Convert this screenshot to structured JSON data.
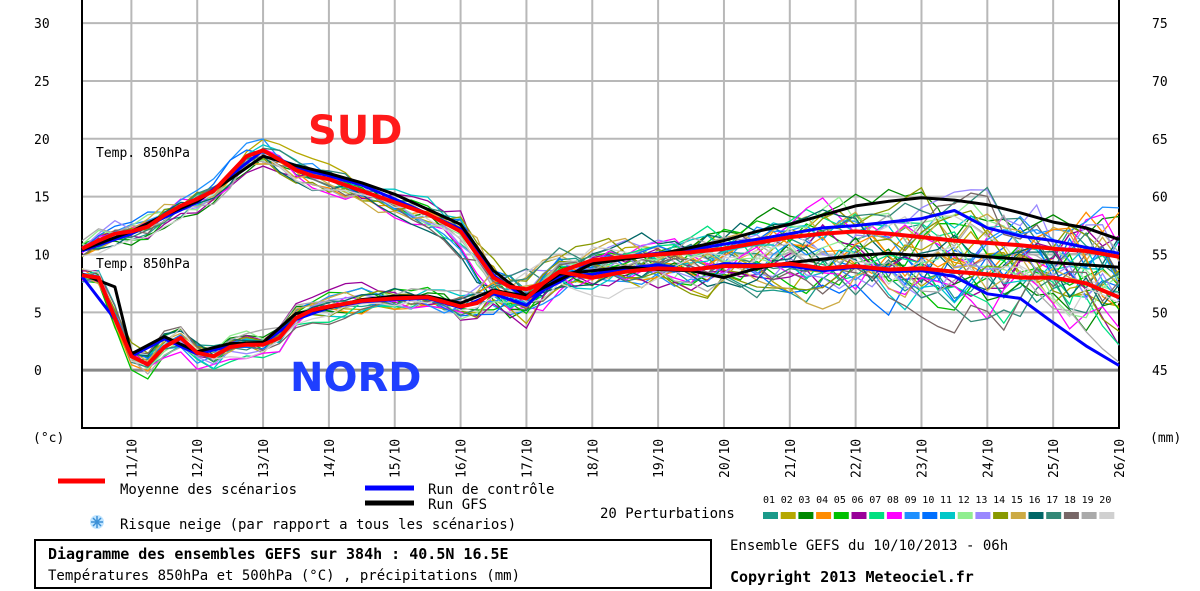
{
  "chart_data": {
    "type": "line",
    "y_left": {
      "label": "(°c)",
      "ticks": [
        0,
        5,
        10,
        15,
        20,
        25,
        30
      ],
      "range": [
        -5,
        32
      ]
    },
    "y_right": {
      "label": "(mm)",
      "ticks": [
        45,
        50,
        55,
        60,
        65,
        70,
        75
      ]
    },
    "x_labels": [
      "11/10",
      "12/10",
      "13/10",
      "14/10",
      "15/10",
      "16/10",
      "17/10",
      "18/10",
      "19/10",
      "20/10",
      "21/10",
      "22/10",
      "23/10",
      "24/10",
      "25/10",
      "26/10"
    ],
    "x_range": [
      10.25,
      26.0
    ],
    "region_labels": {
      "south": "SUD",
      "north": "NORD"
    },
    "series_annotations": [
      "Temp. 850hPa",
      "Temp. 850hPa"
    ],
    "series": [
      {
        "name": "Moyenne des scénarios (SUD)",
        "color": "#ff0000",
        "x": [
          10.25,
          10.5,
          10.75,
          11.0,
          11.25,
          11.5,
          11.75,
          12.0,
          12.25,
          12.5,
          12.75,
          13.0,
          13.25,
          13.5,
          13.75,
          14.0,
          14.5,
          15.0,
          15.5,
          16.0,
          16.25,
          16.5,
          16.75,
          17.0,
          17.25,
          17.5,
          18.0,
          18.5,
          19.0,
          19.5,
          20.0,
          20.5,
          21.0,
          21.5,
          22.0,
          22.5,
          23.0,
          23.5,
          24.0,
          24.5,
          25.0,
          25.5,
          26.0
        ],
        "y": [
          10.5,
          11.2,
          11.8,
          12.0,
          12.4,
          13.4,
          14.2,
          14.8,
          15.5,
          17.0,
          18.5,
          19.0,
          18.2,
          17.3,
          16.8,
          16.5,
          15.5,
          14.5,
          13.5,
          12.0,
          10.0,
          8.0,
          7.2,
          7.0,
          7.5,
          8.5,
          9.5,
          9.8,
          10.0,
          10.2,
          10.5,
          11.0,
          11.5,
          11.8,
          12.0,
          11.8,
          11.5,
          11.2,
          11.0,
          10.8,
          10.5,
          10.3,
          9.8
        ]
      },
      {
        "name": "Moyenne des scénarios (NORD)",
        "color": "#ff0000",
        "x": [
          10.25,
          10.5,
          10.75,
          11.0,
          11.25,
          11.5,
          11.75,
          12.0,
          12.25,
          12.5,
          12.75,
          13.0,
          13.25,
          13.5,
          13.75,
          14.0,
          14.5,
          15.0,
          15.5,
          16.0,
          16.25,
          16.5,
          16.75,
          17.0,
          17.25,
          17.5,
          18.0,
          18.5,
          19.0,
          19.5,
          20.0,
          20.5,
          21.0,
          21.5,
          22.0,
          22.5,
          23.0,
          23.5,
          24.0,
          24.5,
          25.0,
          25.5,
          26.0
        ],
        "y": [
          8.2,
          8.0,
          4.5,
          1.2,
          0.5,
          2.0,
          2.8,
          1.5,
          1.2,
          2.0,
          2.2,
          2.2,
          2.8,
          4.5,
          5.2,
          5.5,
          6.0,
          6.2,
          6.3,
          5.5,
          5.8,
          6.8,
          6.5,
          6.2,
          7.5,
          8.5,
          8.0,
          8.5,
          8.8,
          8.7,
          9.0,
          9.0,
          9.2,
          8.8,
          9.0,
          8.7,
          8.8,
          8.5,
          8.3,
          8.0,
          8.0,
          7.5,
          6.3
        ]
      },
      {
        "name": "Run de contrôle (SUD)",
        "color": "#0000ff",
        "x": [
          10.25,
          11.0,
          11.5,
          12.0,
          12.5,
          13.0,
          13.5,
          14.0,
          14.5,
          15.0,
          15.5,
          16.0,
          16.5,
          17.0,
          17.5,
          18.0,
          18.5,
          19.0,
          19.5,
          20.0,
          20.5,
          21.0,
          21.5,
          22.0,
          22.5,
          23.0,
          23.5,
          24.0,
          24.5,
          25.0,
          25.5,
          26.0
        ],
        "y": [
          10.3,
          11.8,
          13.2,
          14.5,
          16.8,
          19.0,
          17.5,
          16.8,
          16.0,
          14.8,
          13.5,
          12.2,
          8.2,
          6.2,
          7.6,
          9.4,
          9.8,
          10.1,
          10.4,
          10.9,
          11.3,
          11.8,
          12.3,
          12.5,
          12.8,
          13.1,
          13.8,
          12.3,
          11.6,
          11.2,
          10.6,
          10.1
        ]
      },
      {
        "name": "Run de contrôle (NORD)",
        "color": "#0000ff",
        "x": [
          10.25,
          10.75,
          11.0,
          11.5,
          12.0,
          12.5,
          13.0,
          13.5,
          14.0,
          14.5,
          15.0,
          15.5,
          16.0,
          16.5,
          17.0,
          17.5,
          18.0,
          18.5,
          19.0,
          19.5,
          20.0,
          20.5,
          21.0,
          21.5,
          22.0,
          22.5,
          23.0,
          23.5,
          24.0,
          24.5,
          25.0,
          25.5,
          26.0
        ],
        "y": [
          8.1,
          4.4,
          1.2,
          2.7,
          1.4,
          2.1,
          2.3,
          4.4,
          5.4,
          5.9,
          6.1,
          6.2,
          5.4,
          6.6,
          5.6,
          8.1,
          8.3,
          8.8,
          9.1,
          8.6,
          9.2,
          9.1,
          9.0,
          8.6,
          8.9,
          8.5,
          8.6,
          8.1,
          6.6,
          6.2,
          4.1,
          2.1,
          0.4
        ]
      },
      {
        "name": "Run GFS (SUD)",
        "color": "#000000",
        "x": [
          10.25,
          11.0,
          11.5,
          12.0,
          12.5,
          13.0,
          13.5,
          14.0,
          14.5,
          15.0,
          15.5,
          16.0,
          16.5,
          17.0,
          17.5,
          18.0,
          18.5,
          19.0,
          19.5,
          20.0,
          20.5,
          21.0,
          21.5,
          22.0,
          22.5,
          23.0,
          23.5,
          24.0,
          24.5,
          25.0,
          25.5,
          26.0
        ],
        "y": [
          10.4,
          12.0,
          13.4,
          14.6,
          16.5,
          18.5,
          17.7,
          17.0,
          16.2,
          15.2,
          13.9,
          12.6,
          8.6,
          6.4,
          7.8,
          9.2,
          9.6,
          10.0,
          10.6,
          11.2,
          12.0,
          12.6,
          13.4,
          14.2,
          14.6,
          14.9,
          14.7,
          14.3,
          13.6,
          12.8,
          12.3,
          11.3
        ]
      },
      {
        "name": "Run GFS (NORD)",
        "color": "#000000",
        "x": [
          10.25,
          10.75,
          11.0,
          11.5,
          12.0,
          12.5,
          13.0,
          13.5,
          14.0,
          14.5,
          15.0,
          15.5,
          16.0,
          16.5,
          17.0,
          17.5,
          18.0,
          18.5,
          19.0,
          19.5,
          20.0,
          20.5,
          21.0,
          21.5,
          22.0,
          22.5,
          23.0,
          23.5,
          24.0,
          24.5,
          25.0,
          25.5,
          26.0
        ],
        "y": [
          8.3,
          7.2,
          1.4,
          2.9,
          1.6,
          2.3,
          2.4,
          4.9,
          5.4,
          6.1,
          6.4,
          6.4,
          5.8,
          6.9,
          6.4,
          8.3,
          8.6,
          8.9,
          8.7,
          8.6,
          8.0,
          8.8,
          9.3,
          9.6,
          9.9,
          10.1,
          9.9,
          10.0,
          9.8,
          9.6,
          9.3,
          9.1,
          8.9
        ]
      }
    ],
    "perturbations": {
      "label": "20 Perturbations",
      "numbers": [
        "01",
        "02",
        "03",
        "04",
        "05",
        "06",
        "07",
        "08",
        "09",
        "10",
        "11",
        "12",
        "13",
        "14",
        "15",
        "16",
        "17",
        "18",
        "19",
        "20"
      ],
      "colors": [
        "#1a9a8a",
        "#b5a800",
        "#008800",
        "#ff8c00",
        "#00c000",
        "#990099",
        "#00e080",
        "#ff00ff",
        "#1e90ff",
        "#0070ff",
        "#00c8c8",
        "#90ee90",
        "#9a88ff",
        "#889900",
        "#ccaa44",
        "#006666",
        "#338877",
        "#776666",
        "#aaaaaa",
        "#d0d0d0"
      ]
    }
  },
  "legend": {
    "mean": "Moyenne des scénarios",
    "control": "Run de contrôle",
    "gfs": "Run GFS",
    "snow": "Risque neige (par rapport a tous les scénarios)"
  },
  "title": {
    "main": "Diagramme des ensembles GEFS sur 384h : 40.5N 16.5E",
    "sub": "Températures 850hPa et 500hPa (°C) , précipitations (mm)"
  },
  "footer": {
    "ensemble": "Ensemble GEFS du 10/10/2013 - 06h",
    "copyright": "Copyright 2013 Meteociel.fr"
  },
  "colors": {
    "mean": "#ff0000",
    "control": "#0000ff",
    "gfs": "#000000",
    "sud": "#ff1a1a",
    "nord": "#1f3fff",
    "grid": "#b8b8b8"
  }
}
